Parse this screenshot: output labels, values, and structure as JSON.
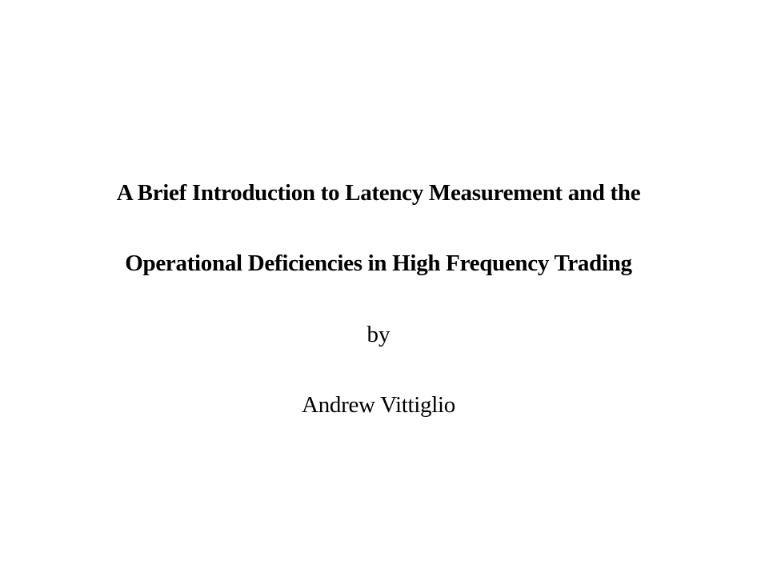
{
  "title": {
    "line1": "A Brief Introduction to Latency Measurement and the",
    "line2": "Operational Deficiencies in High Frequency Trading"
  },
  "byline": "by",
  "author": "Andrew Vittiglio"
}
